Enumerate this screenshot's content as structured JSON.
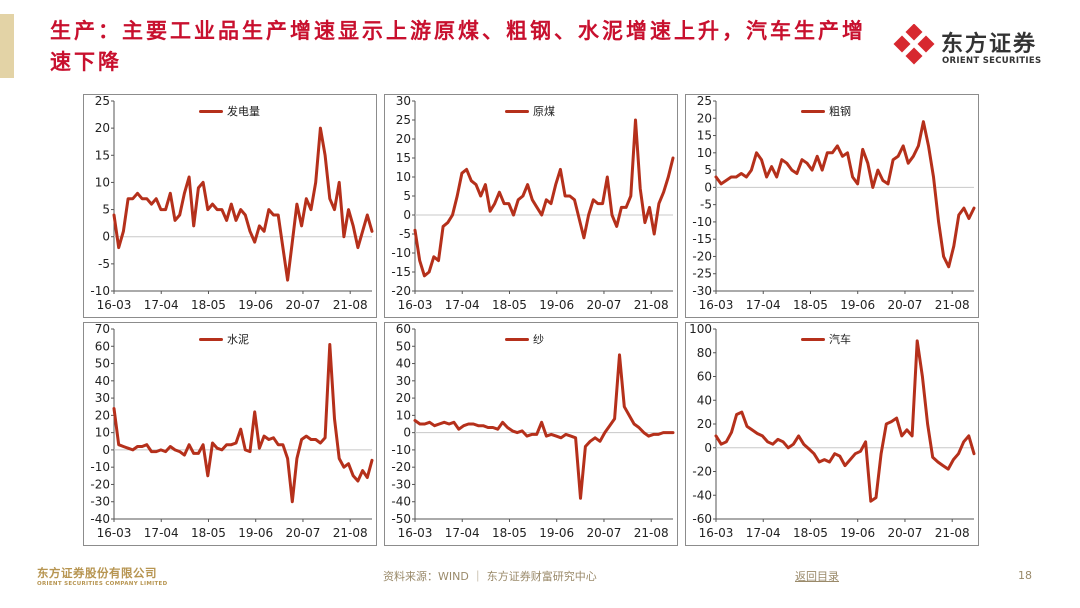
{
  "slide": {
    "title": "生产：主要工业品生产增速显示上游原煤、粗钢、水泥增速上升，汽车生产增速下降",
    "logo_cn": "东方证券",
    "logo_en": "ORIENT SECURITIES",
    "footer_logo_cn": "东方证券股份有限公司",
    "footer_logo_en": "ORIENT SECURITIES COMPANY LIMITED",
    "source": "资料来源：WIND ｜ 东方证券财富研究中心",
    "back_link": "返回目录",
    "page_number": "18",
    "colors": {
      "title": "#c8102e",
      "line": "#b5301b",
      "gold": "#e3d3a6",
      "logo_red": "#d7282f"
    }
  },
  "chart_data": [
    {
      "type": "line",
      "series": [
        {
          "name": "发电量",
          "values": [
            4,
            -2,
            1,
            7,
            7,
            8,
            7,
            7,
            6,
            7,
            5,
            5,
            8,
            3,
            4,
            8,
            11,
            2,
            9,
            10,
            5,
            6,
            5,
            5,
            3,
            6,
            3,
            5,
            4,
            1,
            -1,
            2,
            1,
            5,
            4,
            4,
            -2,
            -8,
            -1,
            6,
            2,
            7,
            5,
            10,
            20,
            15,
            7,
            5,
            10,
            0,
            5,
            2,
            -2,
            1,
            4,
            1
          ]
        }
      ],
      "x_start": "2016-03",
      "tick_labels": [
        "16-03",
        "17-04",
        "18-05",
        "19-06",
        "20-07",
        "21-08"
      ],
      "ylim": [
        -10,
        25
      ],
      "yticks": [
        -10,
        -5,
        0,
        5,
        10,
        15,
        20,
        25
      ]
    },
    {
      "type": "line",
      "series": [
        {
          "name": "原煤",
          "values": [
            -4,
            -12,
            -16,
            -15,
            -11,
            -12,
            -3,
            -2,
            0,
            5,
            11,
            12,
            9,
            8,
            5,
            8,
            1,
            3,
            6,
            3,
            3,
            0,
            4,
            5,
            8,
            4,
            2,
            0,
            4,
            3,
            8,
            12,
            5,
            5,
            4,
            -1,
            -6,
            0,
            4,
            3,
            3,
            10,
            0,
            -3,
            2,
            2,
            5,
            25,
            7,
            -2,
            2,
            -5,
            3,
            6,
            10,
            15
          ]
        }
      ],
      "x_start": "2016-03",
      "tick_labels": [
        "16-03",
        "17-04",
        "18-05",
        "19-06",
        "20-07",
        "21-08"
      ],
      "ylim": [
        -20,
        30
      ],
      "yticks": [
        -20,
        -15,
        -10,
        -5,
        0,
        5,
        10,
        15,
        20,
        25,
        30
      ]
    },
    {
      "type": "line",
      "series": [
        {
          "name": "粗钢",
          "values": [
            3,
            1,
            2,
            3,
            3,
            4,
            3,
            5,
            10,
            8,
            3,
            6,
            3,
            8,
            7,
            5,
            4,
            8,
            7,
            5,
            9,
            5,
            10,
            10,
            12,
            9,
            10,
            3,
            1,
            11,
            7,
            0,
            5,
            2,
            1,
            8,
            9,
            12,
            7,
            9,
            12,
            19,
            12,
            3,
            -10,
            -20,
            -23,
            -17,
            -8,
            -6,
            -9,
            -6
          ]
        }
      ],
      "x_start": "2016-03",
      "tick_labels": [
        "16-03",
        "17-04",
        "18-05",
        "19-06",
        "20-07",
        "21-08"
      ],
      "ylim": [
        -30,
        25
      ],
      "yticks": [
        -30,
        -25,
        -20,
        -15,
        -10,
        -5,
        0,
        5,
        10,
        15,
        20,
        25
      ]
    },
    {
      "type": "line",
      "series": [
        {
          "name": "水泥",
          "values": [
            24,
            3,
            2,
            1,
            0,
            2,
            2,
            3,
            -1,
            -1,
            0,
            -1,
            2,
            0,
            -1,
            -3,
            3,
            -2,
            -2,
            3,
            -15,
            4,
            1,
            0,
            3,
            3,
            4,
            12,
            0,
            -1,
            22,
            1,
            8,
            6,
            7,
            3,
            3,
            -5,
            -30,
            -5,
            6,
            8,
            6,
            6,
            4,
            7,
            61,
            18,
            -5,
            -10,
            -8,
            -15,
            -18,
            -12,
            -16,
            -6
          ]
        }
      ],
      "x_start": "2016-03",
      "tick_labels": [
        "16-03",
        "17-04",
        "18-05",
        "19-06",
        "20-07",
        "21-08"
      ],
      "ylim": [
        -40,
        70
      ],
      "yticks": [
        -40,
        -30,
        -20,
        -10,
        0,
        10,
        20,
        30,
        40,
        50,
        60,
        70
      ]
    },
    {
      "type": "line",
      "series": [
        {
          "name": "纱",
          "values": [
            7,
            5,
            5,
            6,
            4,
            5,
            6,
            5,
            6,
            2,
            4,
            5,
            5,
            4,
            4,
            3,
            3,
            2,
            6,
            3,
            1,
            0,
            1,
            -2,
            -1,
            -1,
            6,
            -2,
            -1,
            -2,
            -3,
            -1,
            -2,
            -3,
            -38,
            -8,
            -5,
            -3,
            -5,
            0,
            4,
            8,
            45,
            15,
            10,
            5,
            3,
            0,
            -2,
            -1,
            -1,
            0,
            0,
            0
          ]
        }
      ],
      "x_start": "2016-03",
      "tick_labels": [
        "16-03",
        "17-04",
        "18-05",
        "19-06",
        "20-07",
        "21-08"
      ],
      "ylim": [
        -50,
        60
      ],
      "yticks": [
        -50,
        -40,
        -30,
        -20,
        -10,
        0,
        10,
        20,
        30,
        40,
        50,
        60
      ]
    },
    {
      "type": "line",
      "series": [
        {
          "name": "汽车",
          "values": [
            10,
            3,
            5,
            13,
            28,
            30,
            18,
            15,
            12,
            10,
            5,
            3,
            7,
            5,
            0,
            3,
            10,
            3,
            -1,
            -5,
            -12,
            -10,
            -12,
            -5,
            -7,
            -15,
            -10,
            -5,
            -3,
            5,
            -45,
            -42,
            -5,
            20,
            22,
            25,
            10,
            15,
            10,
            90,
            60,
            20,
            -8,
            -12,
            -15,
            -18,
            -10,
            -5,
            5,
            10,
            -5
          ]
        }
      ],
      "x_start": "2016-03",
      "tick_labels": [
        "16-03",
        "17-04",
        "18-05",
        "19-06",
        "20-07",
        "21-08"
      ],
      "ylim": [
        -60,
        100
      ],
      "yticks": [
        -60,
        -40,
        -20,
        0,
        20,
        40,
        60,
        80,
        100
      ]
    }
  ]
}
